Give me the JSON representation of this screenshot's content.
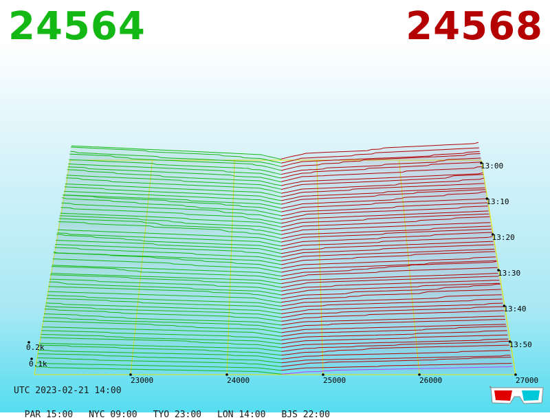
{
  "header": {
    "bid_price": "24564",
    "ask_price": "24568",
    "bid_color": "#14b814",
    "ask_color": "#b40000"
  },
  "footer": {
    "utc_line": "UTC 2023-02-21 14:00",
    "timezones": [
      "PAR 15:00",
      "NYC 09:00",
      "TYO 23:00",
      "LON 14:00",
      "BJS 22:00"
    ]
  },
  "icons": {
    "viewer_toggle": "3d-glasses-icon"
  },
  "chart_data": {
    "type": "3d-depth",
    "mid_price": 24566,
    "price_ticks": [
      23000,
      24000,
      25000,
      26000,
      27000
    ],
    "price_tick_labels": [
      "23000",
      "24000",
      "25000",
      "26000",
      "27000"
    ],
    "time_ticks": [
      "13:00",
      "13:10",
      "13:20",
      "13:30",
      "13:40",
      "13:50"
    ],
    "depth_ticks": [
      100,
      200
    ],
    "depth_tick_labels": [
      "0.1k",
      "0.2k"
    ],
    "time_range": [
      "13:00",
      "14:00"
    ],
    "snapshots": 58,
    "series": [
      {
        "side": "bid",
        "color": "#14b814"
      },
      {
        "side": "ask",
        "color": "#b40000"
      }
    ],
    "current_ask_color": "#b040ff",
    "grid_color": "#e8e800"
  }
}
